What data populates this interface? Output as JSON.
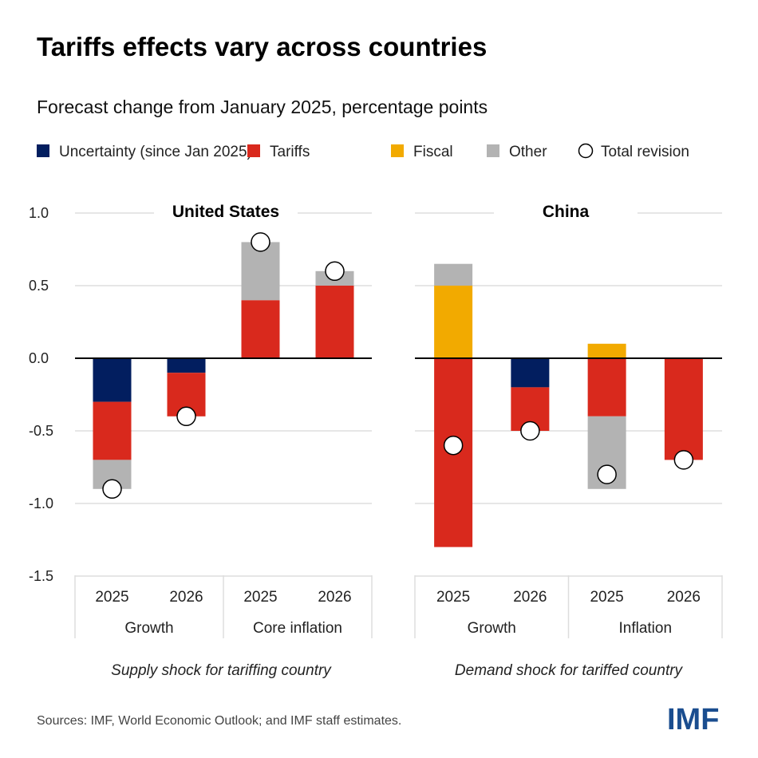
{
  "colors": {
    "Uncertainty (since Jan 2025)": "#021e5f",
    "Tariffs": "#d9291d",
    "Fiscal": "#f2aa00",
    "Other": "#b3b3b3",
    "axis": "#000000",
    "grid": "#dddddd"
  },
  "title": "Tariffs effects vary across countries",
  "subtitle": "Forecast change from January 2025, percentage points",
  "legend": [
    "Uncertainty (since Jan 2025)",
    "Tariffs",
    "Fiscal",
    "Other",
    "Total revision"
  ],
  "source": "Sources: IMF, World Economic Outlook; and IMF staff estimates.",
  "logo": "IMF",
  "chart_data": [
    {
      "type": "bar",
      "stacked": true,
      "title": "United States",
      "note": "Supply shock for tariffing country",
      "categories": [
        "2025",
        "2026",
        "2025",
        "2026"
      ],
      "groups": [
        "Growth",
        "Core inflation"
      ],
      "ylim": [
        -1.5,
        1.0
      ],
      "yticks": [
        "1.0",
        "0.5",
        "0.0",
        "-0.5",
        "-1.0",
        "-1.5"
      ],
      "grid": true,
      "series": [
        {
          "name": "Uncertainty (since Jan 2025)",
          "values": [
            -0.3,
            -0.1,
            0,
            0
          ]
        },
        {
          "name": "Tariffs",
          "values": [
            -0.4,
            -0.3,
            0.4,
            0.5
          ]
        },
        {
          "name": "Fiscal",
          "values": [
            0,
            0,
            0,
            0
          ]
        },
        {
          "name": "Other",
          "values": [
            -0.2,
            0,
            0.4,
            0.1
          ]
        }
      ],
      "total": [
        -0.9,
        -0.4,
        0.8,
        0.6
      ]
    },
    {
      "type": "bar",
      "stacked": true,
      "title": "China",
      "note": "Demand shock for tariffed country",
      "categories": [
        "2025",
        "2026",
        "2025",
        "2026"
      ],
      "groups": [
        "Growth",
        "Inflation"
      ],
      "ylim": [
        -1.5,
        1.0
      ],
      "grid": true,
      "series": [
        {
          "name": "Uncertainty (since Jan 2025)",
          "values": [
            0,
            -0.2,
            0,
            0
          ]
        },
        {
          "name": "Tariffs",
          "values": [
            -1.3,
            -0.3,
            -0.4,
            -0.7
          ]
        },
        {
          "name": "Fiscal",
          "values": [
            0.5,
            0,
            0.1,
            0
          ]
        },
        {
          "name": "Other",
          "values": [
            0.15,
            0,
            -0.5,
            0
          ]
        }
      ],
      "total": [
        -0.6,
        -0.5,
        -0.8,
        -0.7
      ]
    }
  ]
}
